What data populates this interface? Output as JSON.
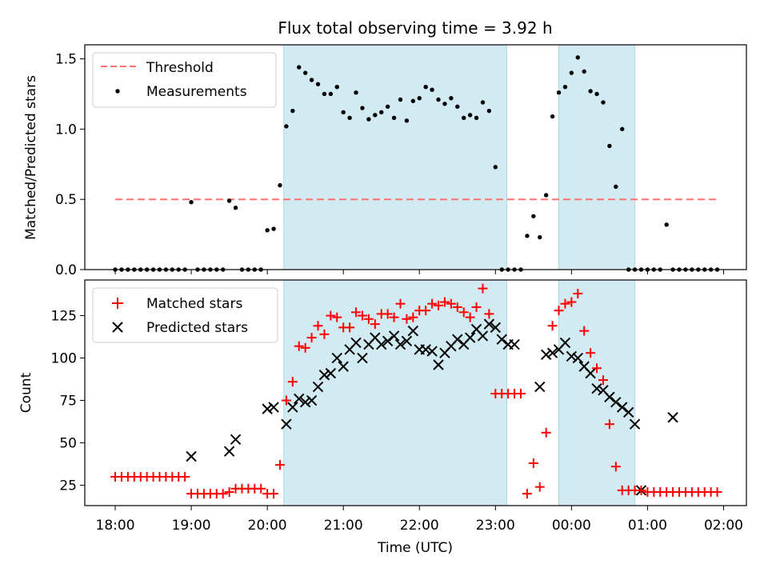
{
  "title": "Flux total observing time = 3.92 h",
  "colors": {
    "threshold": "#ff7070",
    "measurement": "#000000",
    "matched": "#ff0000",
    "predicted": "#000000",
    "shade": "#add8e6"
  },
  "chart_data": [
    {
      "type": "scatter",
      "ylabel": "Matched/Predicted stars",
      "ylim": [
        0,
        1.6
      ],
      "yticks": [
        0.0,
        0.5,
        1.0,
        1.5
      ],
      "ytick_labels": [
        "0.0",
        "0.5",
        "1.0",
        "1.5"
      ],
      "xlim_hours": [
        -0.4,
        8.3
      ],
      "shaded_intervals": [
        [
          "20:13",
          "23:09"
        ],
        [
          "23:50",
          "00:50"
        ]
      ],
      "legend": {
        "position": "upper-left",
        "entries": [
          "Threshold",
          "Measurements"
        ]
      },
      "series": [
        {
          "name": "Threshold",
          "kind": "dashed-line",
          "x": [
            "18:00",
            "01:55"
          ],
          "y": [
            0.5,
            0.5
          ]
        },
        {
          "name": "Measurements",
          "kind": "dots",
          "x": [
            "18:00",
            "18:05",
            "18:10",
            "18:15",
            "18:20",
            "18:25",
            "18:30",
            "18:35",
            "18:40",
            "18:45",
            "18:50",
            "18:55",
            "19:00",
            "19:05",
            "19:10",
            "19:15",
            "19:20",
            "19:25",
            "19:30",
            "19:35",
            "19:40",
            "19:45",
            "19:50",
            "19:55",
            "20:00",
            "20:05",
            "20:10",
            "20:15",
            "20:20",
            "20:25",
            "20:30",
            "20:35",
            "20:40",
            "20:45",
            "20:50",
            "20:55",
            "21:00",
            "21:05",
            "21:10",
            "21:15",
            "21:20",
            "21:25",
            "21:30",
            "21:35",
            "21:40",
            "21:45",
            "21:50",
            "21:55",
            "22:00",
            "22:05",
            "22:10",
            "22:15",
            "22:20",
            "22:25",
            "22:30",
            "22:35",
            "22:40",
            "22:45",
            "22:50",
            "22:55",
            "23:00",
            "23:05",
            "23:10",
            "23:15",
            "23:20",
            "23:25",
            "23:30",
            "23:35",
            "23:40",
            "23:45",
            "23:50",
            "23:55",
            "00:00",
            "00:05",
            "00:10",
            "00:15",
            "00:20",
            "00:25",
            "00:30",
            "00:35",
            "00:40",
            "00:45",
            "00:50",
            "00:55",
            "01:00",
            "01:05",
            "01:10",
            "01:15",
            "01:20",
            "01:25",
            "01:30",
            "01:35",
            "01:40",
            "01:45",
            "01:50",
            "01:55"
          ],
          "y": [
            0,
            0,
            0,
            0,
            0,
            0,
            0,
            0,
            0,
            0,
            0,
            0,
            0.48,
            0,
            0,
            0,
            0,
            0,
            0.49,
            0.44,
            0,
            0,
            0,
            0,
            0.28,
            0.29,
            0.6,
            1.02,
            1.13,
            1.44,
            1.4,
            1.35,
            1.32,
            1.25,
            1.25,
            1.3,
            1.12,
            1.08,
            1.26,
            1.15,
            1.07,
            1.1,
            1.12,
            1.16,
            1.08,
            1.21,
            1.06,
            1.2,
            1.22,
            1.3,
            1.28,
            1.21,
            1.18,
            1.22,
            1.16,
            1.08,
            1.1,
            1.08,
            1.19,
            1.13,
            0.73,
            0,
            0,
            0,
            0,
            0.24,
            0.38,
            0.23,
            0.53,
            1.09,
            1.26,
            1.3,
            1.4,
            1.51,
            1.41,
            1.27,
            1.25,
            1.19,
            0.88,
            0.59,
            1.0,
            0,
            0,
            0,
            0,
            0,
            0,
            0.32,
            0,
            0,
            0,
            0,
            0,
            0,
            0,
            0
          ]
        }
      ]
    },
    {
      "type": "scatter",
      "xlabel": "Time (UTC)",
      "ylabel": "Count",
      "ylim": [
        13,
        146
      ],
      "yticks": [
        25,
        50,
        75,
        100,
        125
      ],
      "ytick_labels": [
        "25",
        "50",
        "75",
        "100",
        "125"
      ],
      "xticks": [
        "18:00",
        "19:00",
        "20:00",
        "21:00",
        "22:00",
        "23:00",
        "00:00",
        "01:00",
        "02:00"
      ],
      "xlim_hours": [
        -0.4,
        8.3
      ],
      "shaded_intervals": [
        [
          "20:13",
          "23:09"
        ],
        [
          "23:50",
          "00:50"
        ]
      ],
      "legend": {
        "position": "upper-left",
        "entries": [
          "Matched stars",
          "Predicted stars"
        ]
      },
      "series": [
        {
          "name": "Matched stars",
          "marker": "+",
          "x": [
            "18:00",
            "18:05",
            "18:10",
            "18:15",
            "18:20",
            "18:25",
            "18:30",
            "18:35",
            "18:40",
            "18:45",
            "18:50",
            "18:55",
            "19:00",
            "19:05",
            "19:10",
            "19:15",
            "19:20",
            "19:25",
            "19:30",
            "19:35",
            "19:40",
            "19:45",
            "19:50",
            "19:55",
            "20:00",
            "20:05",
            "20:10",
            "20:15",
            "20:20",
            "20:25",
            "20:30",
            "20:35",
            "20:40",
            "20:45",
            "20:50",
            "20:55",
            "21:00",
            "21:05",
            "21:10",
            "21:15",
            "21:20",
            "21:25",
            "21:30",
            "21:35",
            "21:40",
            "21:45",
            "21:50",
            "21:55",
            "22:00",
            "22:05",
            "22:10",
            "22:15",
            "22:20",
            "22:25",
            "22:30",
            "22:35",
            "22:40",
            "22:45",
            "22:50",
            "22:55",
            "23:00",
            "23:05",
            "23:10",
            "23:15",
            "23:20",
            "23:25",
            "23:30",
            "23:35",
            "23:40",
            "23:45",
            "23:50",
            "23:55",
            "00:00",
            "00:05",
            "00:10",
            "00:15",
            "00:20",
            "00:25",
            "00:30",
            "00:35",
            "00:40",
            "00:45",
            "00:50",
            "00:55",
            "01:00",
            "01:05",
            "01:10",
            "01:15",
            "01:20",
            "01:25",
            "01:30",
            "01:35",
            "01:40",
            "01:45",
            "01:50",
            "01:55"
          ],
          "y": [
            30,
            30,
            30,
            30,
            30,
            30,
            30,
            30,
            30,
            30,
            30,
            30,
            20,
            20,
            20,
            20,
            20,
            20,
            21,
            23,
            23,
            23,
            23,
            23,
            20,
            20,
            37,
            75,
            86,
            107,
            106,
            112,
            119,
            114,
            125,
            124,
            118,
            118,
            127,
            125,
            123,
            120,
            126,
            126,
            124,
            132,
            123,
            124,
            128,
            128,
            132,
            131,
            133,
            132,
            130,
            127,
            124,
            130,
            141,
            126,
            79,
            79,
            79,
            79,
            79,
            20,
            38,
            24,
            56,
            119,
            128,
            132,
            133,
            138,
            116,
            103,
            94,
            87,
            61,
            36,
            22,
            22,
            22,
            22,
            21,
            21,
            21,
            21,
            21,
            21,
            21,
            21,
            21,
            21,
            21,
            21
          ]
        },
        {
          "name": "Predicted stars",
          "marker": "x",
          "x": [
            "19:00",
            "19:30",
            "19:35",
            "20:00",
            "20:05",
            "20:15",
            "20:20",
            "20:25",
            "20:30",
            "20:35",
            "20:40",
            "20:45",
            "20:50",
            "20:55",
            "21:00",
            "21:05",
            "21:10",
            "21:15",
            "21:20",
            "21:25",
            "21:30",
            "21:35",
            "21:40",
            "21:45",
            "21:50",
            "21:55",
            "22:00",
            "22:05",
            "22:10",
            "22:15",
            "22:20",
            "22:25",
            "22:30",
            "22:35",
            "22:40",
            "22:45",
            "22:50",
            "22:55",
            "23:00",
            "23:05",
            "23:10",
            "23:15",
            "23:35",
            "23:40",
            "23:45",
            "23:50",
            "23:55",
            "00:00",
            "00:05",
            "00:10",
            "00:15",
            "00:20",
            "00:25",
            "00:30",
            "00:35",
            "00:40",
            "00:45",
            "00:50",
            "00:55",
            "01:20"
          ],
          "y": [
            42,
            45,
            52,
            70,
            71,
            61,
            71,
            76,
            74,
            75,
            83,
            90,
            91,
            100,
            95,
            105,
            109,
            100,
            108,
            112,
            108,
            110,
            113,
            108,
            110,
            116,
            105,
            105,
            104,
            96,
            103,
            107,
            111,
            108,
            112,
            117,
            113,
            120,
            118,
            111,
            108,
            108,
            83,
            102,
            103,
            105,
            109,
            101,
            100,
            95,
            91,
            82,
            81,
            77,
            74,
            71,
            68,
            61,
            22,
            65
          ]
        }
      ]
    }
  ]
}
